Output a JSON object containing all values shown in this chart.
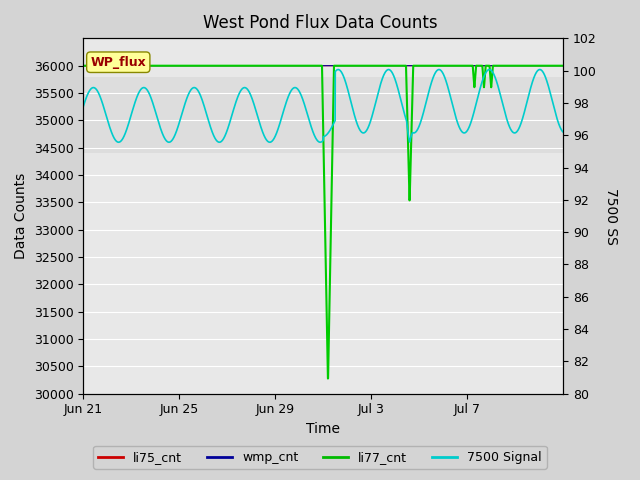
{
  "title": "West Pond Flux Data Counts",
  "xlabel": "Time",
  "ylabel_left": "Data Counts",
  "ylabel_right": "7500 SS",
  "ylim_left": [
    30000,
    36500
  ],
  "ylim_right": [
    80,
    102
  ],
  "bg_color": "#d4d4d4",
  "plot_bg_color": "#e8e8e8",
  "shaded_bg_color": "#dcdcdc",
  "annotation_text": "WP_flux",
  "legend_entries": [
    "li75_cnt",
    "wmp_cnt",
    "li77_cnt",
    "7500 Signal"
  ],
  "legend_colors": [
    "#cc0000",
    "#000099",
    "#00bb00",
    "#00cccc"
  ],
  "xtick_labels": [
    "Jun 21",
    "Jun 25",
    "Jun 29",
    "Jul 3",
    "Jul 7"
  ],
  "xtick_positions": [
    0,
    4,
    8,
    12,
    16
  ],
  "ytick_left": [
    30000,
    30500,
    31000,
    31500,
    32000,
    32500,
    33000,
    33500,
    34000,
    34500,
    35000,
    35500,
    36000
  ],
  "ytick_right": [
    80,
    82,
    84,
    86,
    88,
    90,
    92,
    94,
    96,
    98,
    100,
    102
  ]
}
